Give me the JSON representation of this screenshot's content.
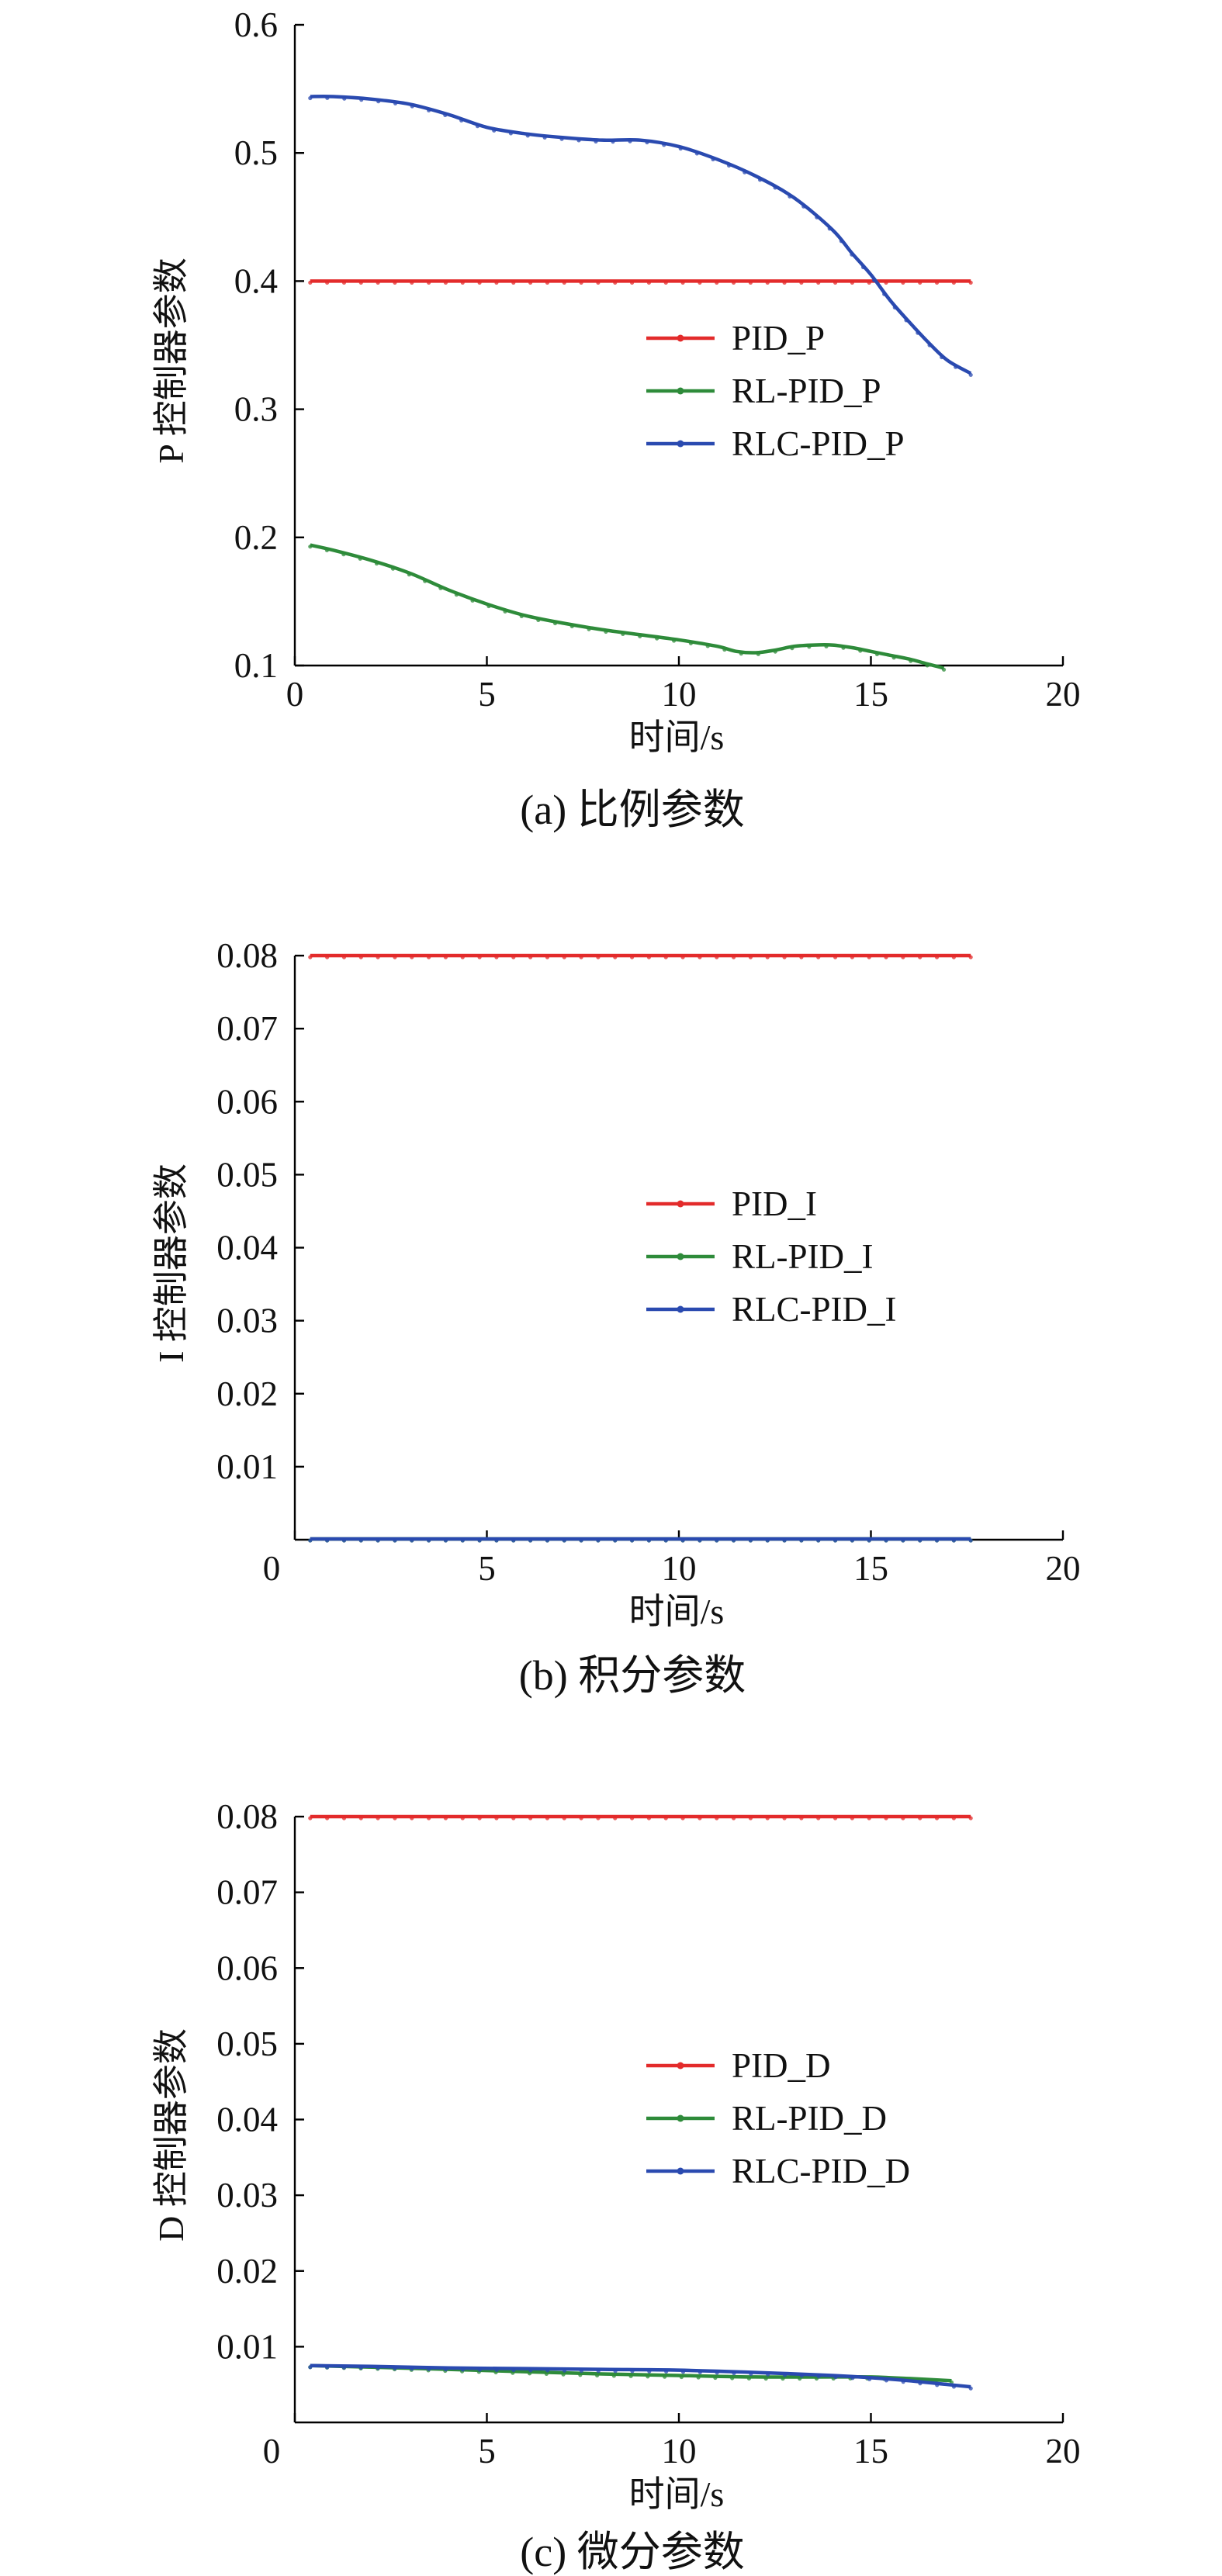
{
  "chart_data": [
    {
      "type": "line",
      "caption": "(a) 比例参数",
      "xlabel": "时间/s",
      "ylabel": "P 控制器参数",
      "xlim": [
        0,
        20
      ],
      "ylim": [
        0.1,
        0.6
      ],
      "xticks": [
        "0",
        "5",
        "10",
        "15",
        "20"
      ],
      "yticks": [
        "0.1",
        "0.2",
        "0.3",
        "0.4",
        "0.5",
        "0.6"
      ],
      "legend_position": "center-right",
      "series": [
        {
          "name": "PID_P",
          "color": "#e32b2b",
          "x": [
            0.4,
            17.6
          ],
          "y": [
            0.4,
            0.4
          ]
        },
        {
          "name": "RL-PID_P",
          "color": "#2e8b3a",
          "x": [
            0.4,
            1,
            2,
            3,
            4,
            5,
            6,
            7,
            8,
            9,
            10,
            11,
            11.5,
            12,
            12.5,
            13,
            13.5,
            14,
            14.5,
            15,
            15.5,
            16,
            16.5,
            16.9
          ],
          "y": [
            0.194,
            0.19,
            0.182,
            0.172,
            0.159,
            0.148,
            0.139,
            0.133,
            0.128,
            0.124,
            0.12,
            0.115,
            0.111,
            0.11,
            0.112,
            0.115,
            0.116,
            0.116,
            0.114,
            0.111,
            0.108,
            0.105,
            0.101,
            0.098
          ]
        },
        {
          "name": "RLC-PID_P",
          "color": "#2a4ab0",
          "x": [
            0.4,
            1,
            2,
            3,
            4,
            5,
            6,
            7,
            8,
            9,
            10,
            11,
            12,
            13,
            14,
            14.5,
            15,
            15.5,
            16,
            16.5,
            17,
            17.6
          ],
          "y": [
            0.544,
            0.544,
            0.542,
            0.538,
            0.53,
            0.52,
            0.515,
            0.512,
            0.51,
            0.51,
            0.505,
            0.495,
            0.482,
            0.465,
            0.44,
            0.422,
            0.405,
            0.385,
            0.368,
            0.352,
            0.338,
            0.328
          ]
        }
      ]
    },
    {
      "type": "line",
      "caption": "(b) 积分参数",
      "xlabel": "时间/s",
      "ylabel": "I 控制器参数",
      "xlim": [
        0,
        20
      ],
      "ylim": [
        0,
        0.08
      ],
      "xticks": [
        "0",
        "5",
        "10",
        "15",
        "20"
      ],
      "yticks": [
        "0.01",
        "0.02",
        "0.03",
        "0.04",
        "0.05",
        "0.06",
        "0.07",
        "0.08"
      ],
      "legend_position": "center-right",
      "series": [
        {
          "name": "PID_I",
          "color": "#e32b2b",
          "x": [
            0.4,
            17.6
          ],
          "y": [
            0.08,
            0.08
          ]
        },
        {
          "name": "RL-PID_I",
          "color": "#2e8b3a",
          "x": [
            0.4,
            17.6
          ],
          "y": [
            0.0001,
            0.0001
          ]
        },
        {
          "name": "RLC-PID_I",
          "color": "#2a4ab0",
          "x": [
            0.4,
            17.6
          ],
          "y": [
            0.0001,
            0.0001
          ]
        }
      ]
    },
    {
      "type": "line",
      "caption": "(c) 微分参数",
      "xlabel": "时间/s",
      "ylabel": "D 控制器参数",
      "xlim": [
        0,
        20
      ],
      "ylim": [
        0,
        0.08
      ],
      "xticks": [
        "0",
        "5",
        "10",
        "15",
        "20"
      ],
      "yticks": [
        "0.01",
        "0.02",
        "0.03",
        "0.04",
        "0.05",
        "0.06",
        "0.07",
        "0.08"
      ],
      "legend_position": "center-right",
      "series": [
        {
          "name": "PID_D",
          "color": "#e32b2b",
          "x": [
            0.4,
            17.6
          ],
          "y": [
            0.08,
            0.08
          ]
        },
        {
          "name": "RL-PID_D",
          "color": "#2e8b3a",
          "x": [
            0.4,
            2,
            4,
            6,
            8,
            10,
            12,
            14,
            15,
            16,
            17.1
          ],
          "y": [
            0.0075,
            0.0073,
            0.007,
            0.0067,
            0.0064,
            0.0062,
            0.006,
            0.006,
            0.006,
            0.0058,
            0.0055
          ]
        },
        {
          "name": "RLC-PID_D",
          "color": "#2a4ab0",
          "x": [
            0.4,
            2,
            4,
            6,
            8,
            10,
            12,
            14,
            15,
            16,
            17,
            17.6
          ],
          "y": [
            0.0075,
            0.0074,
            0.0072,
            0.0071,
            0.007,
            0.0069,
            0.0066,
            0.0062,
            0.0059,
            0.0055,
            0.005,
            0.0047
          ]
        }
      ]
    }
  ]
}
